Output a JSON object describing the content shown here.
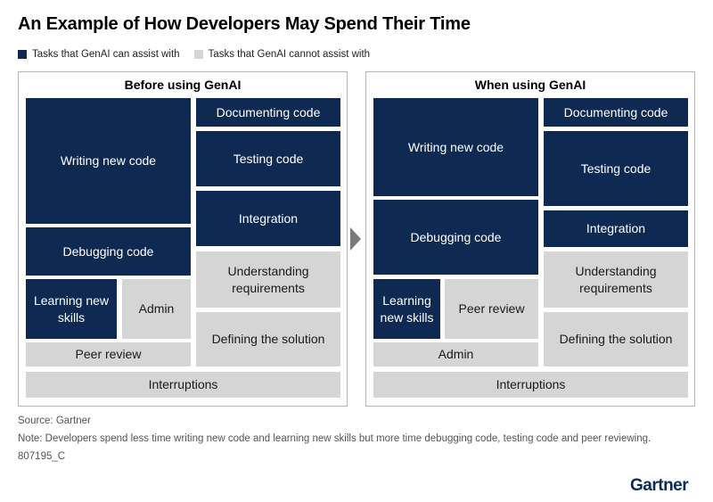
{
  "title": "An Example of How Developers May Spend Their Time",
  "legend": {
    "assist": {
      "label": "Tasks that GenAI can assist with",
      "color": "#0e2a52"
    },
    "no_assist": {
      "label": "Tasks that GenAI cannot assist with",
      "color": "#d5d5d5"
    }
  },
  "before": {
    "title": "Before using GenAI",
    "blocks": {
      "writing": "Writing new code",
      "documenting": "Documenting code",
      "testing": "Testing code",
      "integration": "Integration",
      "debugging": "Debugging code",
      "understanding": "Understanding requirements",
      "learning": "Learning new skills",
      "admin": "Admin",
      "defining": "Defining the solution",
      "peer": "Peer review",
      "interruptions": "Interruptions"
    }
  },
  "after": {
    "title": "When using GenAI",
    "blocks": {
      "writing": "Writing new code",
      "documenting": "Documenting code",
      "testing": "Testing code",
      "debugging": "Debugging code",
      "integration": "Integration",
      "understanding": "Understanding requirements",
      "learning": "Learning new skills",
      "peer": "Peer review",
      "defining": "Defining the solution",
      "admin": "Admin",
      "interruptions": "Interruptions"
    }
  },
  "footer": {
    "source": "Source: Gartner",
    "note": "Note: Developers spend less time writing new code and learning new skills but more time debugging code, testing code and peer reviewing.",
    "code": "807195_C"
  },
  "logo": "Gartner"
}
